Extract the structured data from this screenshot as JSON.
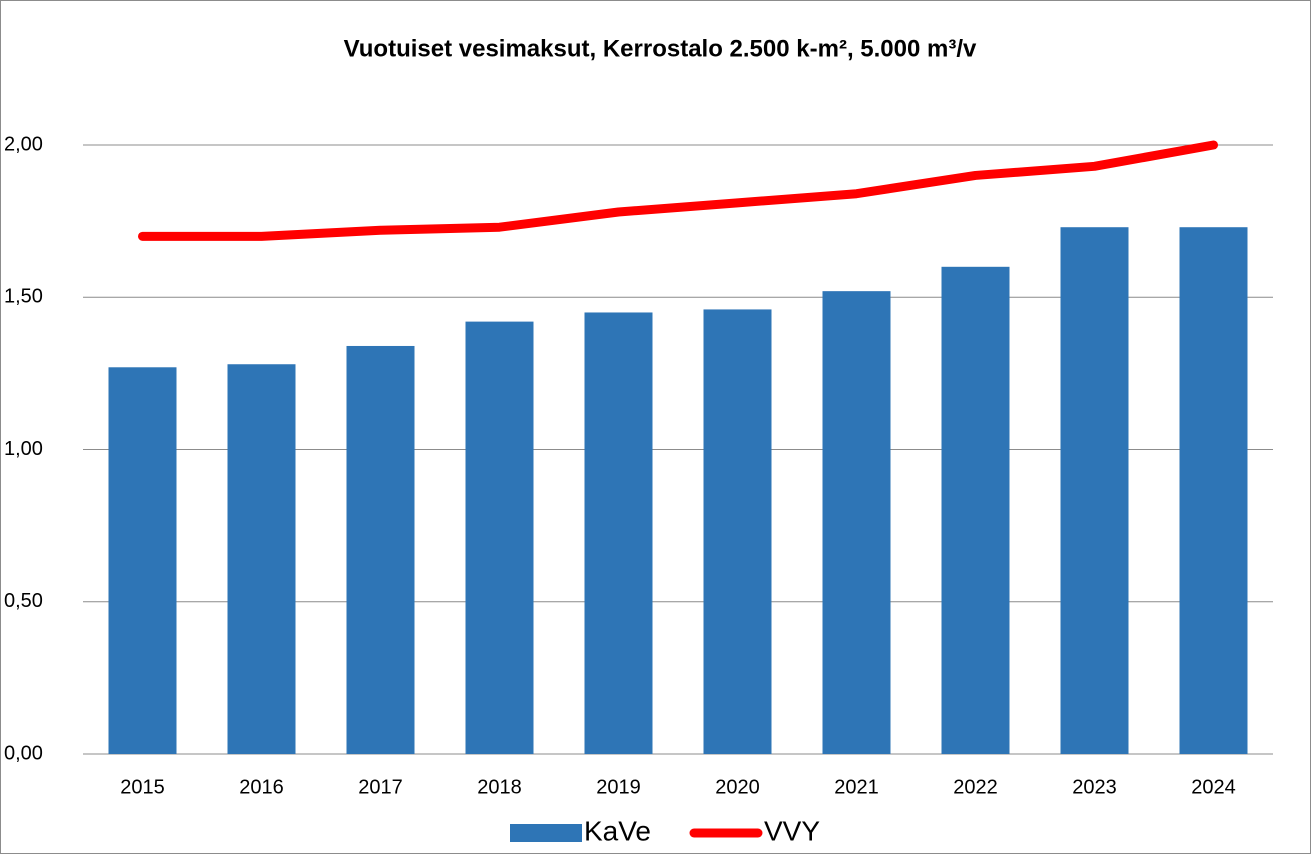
{
  "chart_data": {
    "type": "bar",
    "title": "Vuotuiset vesimaksut, Kerrostalo 2.500 k-m², 5.000 m³/v",
    "categories": [
      "2015",
      "2016",
      "2017",
      "2018",
      "2019",
      "2020",
      "2021",
      "2022",
      "2023",
      "2024"
    ],
    "series": [
      {
        "name": "KaVe",
        "type": "bar",
        "color": "#2e75b6",
        "values": [
          1.27,
          1.28,
          1.34,
          1.42,
          1.45,
          1.46,
          1.52,
          1.6,
          1.73,
          1.73
        ]
      },
      {
        "name": "VVY",
        "type": "line",
        "color": "#ff0000",
        "values": [
          1.7,
          1.7,
          1.72,
          1.73,
          1.78,
          1.81,
          1.84,
          1.9,
          1.93,
          2.0
        ]
      }
    ],
    "ylim": [
      0,
      2
    ],
    "yticks": [
      {
        "value": 0,
        "label": "0,00"
      },
      {
        "value": 0.5,
        "label": "0,50"
      },
      {
        "value": 1,
        "label": "1,00"
      },
      {
        "value": 1.5,
        "label": "1,50"
      },
      {
        "value": 2,
        "label": "2,00"
      }
    ],
    "grid": true,
    "legend": "bottom"
  }
}
